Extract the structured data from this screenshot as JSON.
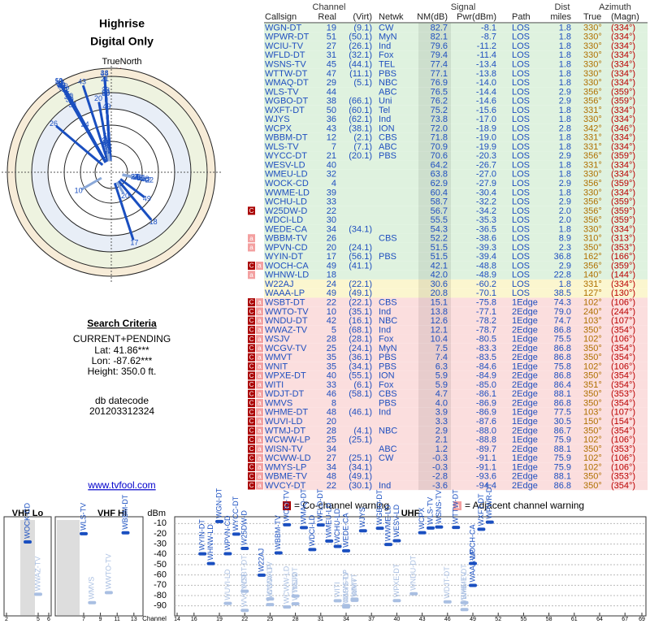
{
  "left": {
    "title1": "Highrise",
    "title2": "Digital Only",
    "north_caption": "TrueNorth",
    "north": "N",
    "criteria_title": "Search Criteria",
    "criteria": [
      "CURRENT+PENDING",
      "Lat: 41.86***",
      "Lon: -87.62***",
      "Height: 350.0 ft."
    ],
    "db_label": "db datecode",
    "db_code": "201203312324",
    "link": "www.tvfool.com"
  },
  "table": {
    "groups": [
      "Channel",
      "Signal",
      "Dist",
      "Azimuth"
    ],
    "headers": [
      "Callsign",
      "Real",
      "(Virt)",
      "Netwk",
      "NM(dB)",
      "Pwr(dBm)",
      "Path",
      "miles",
      "True",
      "(Magn)"
    ],
    "rows": [
      [
        "WGN-DT",
        "19",
        "(9.1)",
        "CW",
        "82.7",
        "-8.1",
        "LOS",
        "1.8",
        "330°",
        "(334°)"
      ],
      [
        "WPWR-DT",
        "51",
        "(50.1)",
        "MyN",
        "82.1",
        "-8.7",
        "LOS",
        "1.8",
        "330°",
        "(334°)"
      ],
      [
        "WCIU-TV",
        "27",
        "(26.1)",
        "Ind",
        "79.6",
        "-11.2",
        "LOS",
        "1.8",
        "330°",
        "(334°)"
      ],
      [
        "WFLD-DT",
        "31",
        "(32.1)",
        "Fox",
        "79.4",
        "-11.4",
        "LOS",
        "1.8",
        "330°",
        "(334°)"
      ],
      [
        "WSNS-TV",
        "45",
        "(44.1)",
        "TEL",
        "77.4",
        "-13.4",
        "LOS",
        "1.8",
        "330°",
        "(334°)"
      ],
      [
        "WTTW-DT",
        "47",
        "(11.1)",
        "PBS",
        "77.1",
        "-13.8",
        "LOS",
        "1.8",
        "330°",
        "(334°)"
      ],
      [
        "WMAQ-DT",
        "29",
        "(5.1)",
        "NBC",
        "76.9",
        "-14.0",
        "LOS",
        "1.8",
        "330°",
        "(334°)"
      ],
      [
        "WLS-TV",
        "44",
        null,
        "ABC",
        "76.5",
        "-14.4",
        "LOS",
        "2.9",
        "356°",
        "(359°)"
      ],
      [
        "WGBO-DT",
        "38",
        "(66.1)",
        "Uni",
        "76.2",
        "-14.6",
        "LOS",
        "2.9",
        "356°",
        "(359°)"
      ],
      [
        "WXFT-DT",
        "50",
        "(60.1)",
        "Tel",
        "75.2",
        "-15.6",
        "LOS",
        "1.8",
        "331°",
        "(334°)"
      ],
      [
        "WJYS",
        "36",
        "(62.1)",
        "Ind",
        "73.8",
        "-17.0",
        "LOS",
        "1.8",
        "330°",
        "(334°)"
      ],
      [
        "WCPX",
        "43",
        "(38.1)",
        "ION",
        "72.0",
        "-18.9",
        "LOS",
        "2.8",
        "342°",
        "(346°)"
      ],
      [
        "WBBM-DT",
        "12",
        "(2.1)",
        "CBS",
        "71.8",
        "-19.0",
        "LOS",
        "1.8",
        "331°",
        "(334°)"
      ],
      [
        "WLS-TV",
        "7",
        "(7.1)",
        "ABC",
        "70.9",
        "-19.9",
        "LOS",
        "1.8",
        "331°",
        "(334°)"
      ],
      [
        "WYCC-DT",
        "21",
        "(20.1)",
        "PBS",
        "70.6",
        "-20.3",
        "LOS",
        "2.9",
        "356°",
        "(359°)"
      ],
      [
        "WESV-LD",
        "40",
        null,
        null,
        "64.2",
        "-26.7",
        "LOS",
        "1.8",
        "331°",
        "(334°)"
      ],
      [
        "WMEU-LD",
        "32",
        null,
        null,
        "63.8",
        "-27.0",
        "LOS",
        "1.8",
        "330°",
        "(334°)"
      ],
      [
        "WOCK-CD",
        "4",
        null,
        null,
        "62.9",
        "-27.9",
        "LOS",
        "2.9",
        "356°",
        "(359°)"
      ],
      [
        "WWME-LD",
        "39",
        null,
        null,
        "60.4",
        "-30.4",
        "LOS",
        "1.8",
        "330°",
        "(334°)"
      ],
      [
        "WCHU-LD",
        "33",
        null,
        null,
        "58.7",
        "-32.2",
        "LOS",
        "2.9",
        "356°",
        "(359°)"
      ],
      [
        "W25DW-D",
        "22",
        null,
        null,
        "56.7",
        "-34.2",
        "LOS",
        "2.0",
        "356°",
        "(359°)",
        [
          "C"
        ]
      ],
      [
        "WDCI-LD",
        "30",
        null,
        null,
        "55.5",
        "-35.3",
        "LOS",
        "2.0",
        "356°",
        "(359°)"
      ],
      [
        "WEDE-CA",
        "34",
        "(34.1)",
        null,
        "54.3",
        "-36.5",
        "LOS",
        "1.8",
        "330°",
        "(334°)"
      ],
      [
        "WBBM-TV",
        "26",
        null,
        "CBS",
        "52.2",
        "-38.6",
        "LOS",
        "8.9",
        "310°",
        "(313°)",
        [
          "a"
        ]
      ],
      [
        "WPVN-CD",
        "20",
        "(24.1)",
        null,
        "51.5",
        "-39.3",
        "LOS",
        "2.3",
        "350°",
        "(353°)",
        [
          "a"
        ]
      ],
      [
        "WYIN-DT",
        "17",
        "(56.1)",
        "PBS",
        "51.5",
        "-39.4",
        "LOS",
        "36.8",
        "162°",
        "(166°)"
      ],
      [
        "WOCH-CA",
        "49",
        "(41.1)",
        null,
        "42.1",
        "-48.8",
        "LOS",
        "2.9",
        "356°",
        "(359°)",
        [
          "C",
          "a"
        ]
      ],
      [
        "WHNW-LD",
        "18",
        null,
        null,
        "42.0",
        "-48.9",
        "LOS",
        "22.8",
        "140°",
        "(144°)",
        [
          "a"
        ]
      ],
      [
        "W22AJ",
        "24",
        "(22.1)",
        null,
        "30.6",
        "-60.2",
        "LOS",
        "1.8",
        "331°",
        "(334°)"
      ],
      [
        "WAAA-LP",
        "49",
        "(49.1)",
        null,
        "20.8",
        "-70.1",
        "LOS",
        "38.5",
        "127°",
        "(130°)"
      ],
      [
        "WSBT-DT",
        "22",
        "(22.1)",
        "CBS",
        "15.1",
        "-75.8",
        "1Edge",
        "74.3",
        "102°",
        "(106°)",
        [
          "C",
          "a"
        ]
      ],
      [
        "WWTO-TV",
        "10",
        "(35.1)",
        "Ind",
        "13.8",
        "-77.1",
        "2Edge",
        "79.0",
        "240°",
        "(244°)",
        [
          "C",
          "a"
        ]
      ],
      [
        "WNDU-DT",
        "42",
        "(16.1)",
        "NBC",
        "12.6",
        "-78.2",
        "1Edge",
        "74.7",
        "103°",
        "(107°)",
        [
          "C",
          "a"
        ]
      ],
      [
        "WWAZ-TV",
        "5",
        "(68.1)",
        "Ind",
        "12.1",
        "-78.7",
        "2Edge",
        "86.8",
        "350°",
        "(354°)",
        [
          "C",
          "a"
        ]
      ],
      [
        "WSJV",
        "28",
        "(28.1)",
        "Fox",
        "10.4",
        "-80.5",
        "1Edge",
        "75.5",
        "102°",
        "(106°)",
        [
          "C",
          "a"
        ]
      ],
      [
        "WCGV-TV",
        "25",
        "(24.1)",
        "MyN",
        "7.5",
        "-83.3",
        "2Edge",
        "86.8",
        "350°",
        "(354°)",
        [
          "C",
          "a"
        ]
      ],
      [
        "WMVT",
        "35",
        "(36.1)",
        "PBS",
        "7.4",
        "-83.5",
        "2Edge",
        "86.8",
        "350°",
        "(354°)",
        [
          "C",
          "a"
        ]
      ],
      [
        "WNIT",
        "35",
        "(34.1)",
        "PBS",
        "6.3",
        "-84.6",
        "1Edge",
        "75.8",
        "102°",
        "(106°)",
        [
          "C",
          "a"
        ]
      ],
      [
        "WPXE-DT",
        "40",
        "(55.1)",
        "ION",
        "5.9",
        "-84.9",
        "2Edge",
        "86.8",
        "350°",
        "(354°)",
        [
          "C",
          "a"
        ]
      ],
      [
        "WITI",
        "33",
        "(6.1)",
        "Fox",
        "5.9",
        "-85.0",
        "2Edge",
        "86.4",
        "351°",
        "(354°)",
        [
          "C",
          "a"
        ]
      ],
      [
        "WDJT-DT",
        "46",
        "(58.1)",
        "CBS",
        "4.7",
        "-86.1",
        "2Edge",
        "88.1",
        "350°",
        "(353°)",
        [
          "C",
          "a"
        ]
      ],
      [
        "WMVS",
        "8",
        null,
        "PBS",
        "4.0",
        "-86.9",
        "2Edge",
        "86.8",
        "350°",
        "(354°)",
        [
          "C",
          "a"
        ]
      ],
      [
        "WHME-DT",
        "48",
        "(46.1)",
        "Ind",
        "3.9",
        "-86.9",
        "1Edge",
        "77.5",
        "103°",
        "(107°)",
        [
          "C",
          "a"
        ]
      ],
      [
        "WUVI-LD",
        "20",
        null,
        null,
        "3.3",
        "-87.6",
        "1Edge",
        "30.5",
        "150°",
        "(154°)",
        [
          "C",
          "a"
        ]
      ],
      [
        "WTMJ-DT",
        "28",
        "(4.1)",
        "NBC",
        "2.9",
        "-88.0",
        "2Edge",
        "86.7",
        "350°",
        "(354°)",
        [
          "C",
          "a"
        ]
      ],
      [
        "WCWW-LP",
        "25",
        "(25.1)",
        null,
        "2.1",
        "-88.8",
        "1Edge",
        "75.9",
        "102°",
        "(106°)",
        [
          "C",
          "a"
        ]
      ],
      [
        "WISN-TV",
        "34",
        null,
        "ABC",
        "1.2",
        "-89.7",
        "2Edge",
        "88.1",
        "350°",
        "(353°)",
        [
          "C",
          "a"
        ]
      ],
      [
        "WCWW-LD",
        "27",
        "(25.1)",
        "CW",
        "-0.3",
        "-91.1",
        "1Edge",
        "75.9",
        "102°",
        "(106°)",
        [
          "C",
          "a"
        ]
      ],
      [
        "WMYS-LP",
        "34",
        "(34.1)",
        null,
        "-0.3",
        "-91.1",
        "1Edge",
        "75.9",
        "102°",
        "(106°)",
        [
          "C",
          "a"
        ]
      ],
      [
        "WBME-TV",
        "48",
        "(49.1)",
        null,
        "-2.8",
        "-93.6",
        "2Edge",
        "88.1",
        "350°",
        "(353°)",
        [
          "C",
          "a"
        ]
      ],
      [
        "WVCY-DT",
        "22",
        "(30.1)",
        "Ind",
        "-3.6",
        "-94.4",
        "2Edge",
        "86.8",
        "350°",
        "(354°)",
        [
          "C",
          "a"
        ]
      ]
    ]
  },
  "legend": {
    "co_mark": "C",
    "co_text": "= Co-channel warning",
    "adj_mark": "a",
    "adj_text": "= Adjacent channel warning"
  },
  "spectrum": {
    "vhf_lo": "VHF Lo",
    "vhf_hi": "VHF Hi",
    "uhf": "UHF",
    "y_unit": "dBm",
    "x_label": "Channel",
    "ylim": [
      -5,
      -95
    ],
    "yticks": [
      -10,
      -20,
      -30,
      -40,
      -50,
      -60,
      -70,
      -80,
      -90
    ],
    "xticks": [
      2,
      5,
      6,
      7,
      9,
      11,
      13,
      14,
      16,
      19,
      22,
      25,
      28,
      31,
      34,
      37,
      40,
      43,
      46,
      49,
      52,
      55,
      58,
      61,
      64,
      67,
      69
    ]
  }
}
